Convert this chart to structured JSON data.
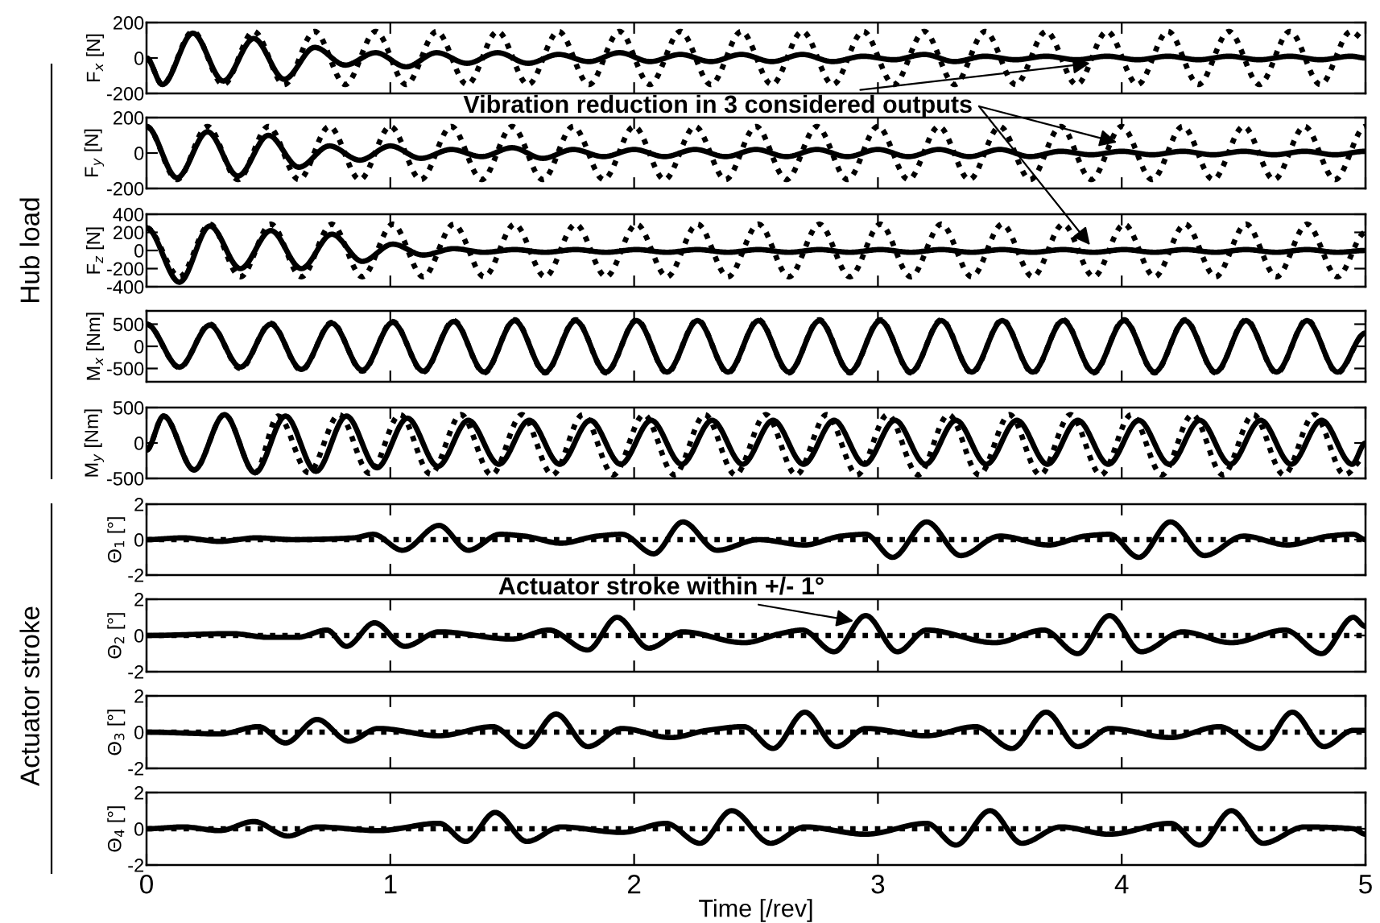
{
  "chart_data": [
    {
      "type": "line",
      "ylabel": "F$_{x}$ [N]",
      "xlim": [
        0,
        5
      ],
      "xticks": [
        0,
        1,
        2,
        3,
        4,
        5
      ],
      "ylim": [
        -200,
        200
      ],
      "yticks": [
        -200,
        0,
        200
      ],
      "tick_labels": "y",
      "x": [
        0,
        0.065,
        0.19,
        0.315,
        0.44,
        0.565,
        0.69,
        0.815,
        0.94,
        1.065,
        1.19,
        1.315,
        1.44,
        1.565,
        1.69,
        1.815,
        1.94,
        2.065,
        2.19,
        2.315,
        2.44,
        2.565,
        2.69,
        2.815,
        2.94,
        3.065,
        3.19,
        3.315,
        3.44,
        3.565,
        3.69,
        3.815,
        3.94,
        4.065,
        4.19,
        4.315,
        4.44,
        4.565,
        4.69,
        4.815,
        4.94,
        5
      ],
      "series": [
        {
          "color": "#000000",
          "line_style": "dotted",
          "values": [
            0,
            -150,
            150,
            -150,
            150,
            -150,
            150,
            -150,
            150,
            -150,
            150,
            -150,
            150,
            -150,
            150,
            -150,
            150,
            -150,
            150,
            -150,
            150,
            -150,
            150,
            -150,
            150,
            -150,
            150,
            -150,
            150,
            -150,
            150,
            -150,
            150,
            -150,
            150,
            -150,
            150,
            -150,
            150,
            -150,
            150,
            100
          ]
        },
        {
          "color": "#000000",
          "line_style": "solid",
          "values": [
            0,
            -150,
            140,
            -130,
            110,
            -120,
            60,
            -40,
            30,
            -50,
            30,
            -30,
            30,
            -30,
            20,
            -20,
            30,
            -20,
            20,
            -20,
            20,
            -20,
            20,
            -20,
            10,
            -10,
            20,
            -20,
            10,
            -10,
            10,
            -10,
            10,
            -10,
            10,
            -10,
            10,
            -10,
            10,
            -10,
            10,
            0
          ]
        }
      ],
      "annotations": [
        {
          "text": "Vibration reduction in 3 considered outputs",
          "x": 3.87,
          "y": -30
        }
      ]
    },
    {
      "type": "line",
      "ylabel": "F$_{y}$ [N]",
      "xlim": [
        0,
        5
      ],
      "xticks": [
        0,
        1,
        2,
        3,
        4,
        5
      ],
      "ylim": [
        -200,
        200
      ],
      "yticks": [
        -200,
        0,
        200
      ],
      "tick_labels": "y",
      "x": [
        0,
        0.125,
        0.25,
        0.375,
        0.5,
        0.625,
        0.75,
        0.875,
        1,
        1.125,
        1.25,
        1.375,
        1.5,
        1.625,
        1.75,
        1.875,
        2,
        2.125,
        2.25,
        2.375,
        2.5,
        2.625,
        2.75,
        2.875,
        3,
        3.125,
        3.25,
        3.375,
        3.5,
        3.625,
        3.75,
        3.875,
        4,
        4.125,
        4.25,
        4.375,
        4.5,
        4.625,
        4.75,
        4.875,
        5
      ],
      "series": [
        {
          "color": "#000000",
          "line_style": "dotted",
          "values": [
            150,
            -150,
            150,
            -150,
            150,
            -150,
            150,
            -150,
            150,
            -150,
            150,
            -150,
            150,
            -150,
            150,
            -150,
            150,
            -150,
            150,
            -150,
            150,
            -150,
            150,
            -150,
            150,
            -150,
            150,
            -150,
            150,
            -150,
            150,
            -150,
            150,
            -150,
            150,
            -150,
            150,
            -150,
            150,
            -150,
            150
          ]
        },
        {
          "color": "#000000",
          "line_style": "solid",
          "values": [
            150,
            -140,
            120,
            -130,
            100,
            -80,
            40,
            -40,
            40,
            -30,
            20,
            -20,
            30,
            -30,
            20,
            -20,
            20,
            -20,
            20,
            -20,
            20,
            -20,
            20,
            -20,
            20,
            -20,
            20,
            -20,
            20,
            -20,
            10,
            -10,
            10,
            -10,
            10,
            -10,
            10,
            -10,
            10,
            -10,
            10
          ]
        }
      ]
    },
    {
      "type": "line",
      "ylabel": "F$_{z}$ [N]",
      "xlim": [
        0,
        5
      ],
      "xticks": [
        0,
        1,
        2,
        3,
        4,
        5
      ],
      "ylim": [
        -400,
        400
      ],
      "yticks": [
        -400,
        -200,
        0,
        200,
        400
      ],
      "tick_labels": "y",
      "x": [
        0,
        0.135,
        0.26,
        0.385,
        0.51,
        0.635,
        0.76,
        0.885,
        1.01,
        1.135,
        1.26,
        1.385,
        1.51,
        1.635,
        1.76,
        1.885,
        2.01,
        2.135,
        2.26,
        2.385,
        2.51,
        2.635,
        2.76,
        2.885,
        3.01,
        3.135,
        3.26,
        3.385,
        3.51,
        3.635,
        3.76,
        3.885,
        4.01,
        4.135,
        4.26,
        4.385,
        4.51,
        4.635,
        4.76,
        4.885,
        5
      ],
      "series": [
        {
          "color": "#000000",
          "line_style": "dotted",
          "values": [
            250,
            -290,
            290,
            -290,
            290,
            -290,
            290,
            -290,
            290,
            -290,
            290,
            -290,
            290,
            -290,
            290,
            -290,
            290,
            -290,
            290,
            -290,
            290,
            -290,
            290,
            -290,
            290,
            -290,
            290,
            -290,
            290,
            -290,
            290,
            -290,
            290,
            -290,
            290,
            -290,
            290,
            -290,
            290,
            -290,
            200
          ]
        },
        {
          "color": "#000000",
          "line_style": "solid",
          "values": [
            250,
            -350,
            270,
            -200,
            220,
            -200,
            180,
            -120,
            70,
            -50,
            20,
            -20,
            10,
            -20,
            10,
            -20,
            10,
            -20,
            10,
            -20,
            10,
            -20,
            10,
            -20,
            10,
            -20,
            10,
            -20,
            10,
            -20,
            10,
            -20,
            10,
            -20,
            10,
            -20,
            10,
            -20,
            10,
            -20,
            0
          ]
        }
      ],
      "annotations": [
        "Hub load"
      ]
    },
    {
      "type": "line",
      "ylabel": "M$_{x}$ [Nm]",
      "xlim": [
        0,
        5
      ],
      "xticks": [
        0,
        1,
        2,
        3,
        4,
        5
      ],
      "ylim": [
        -800,
        800
      ],
      "yticks": [
        -500,
        0,
        500
      ],
      "tick_labels": "y",
      "x": [
        0,
        0.135,
        0.26,
        0.385,
        0.51,
        0.635,
        0.76,
        0.885,
        1.01,
        1.135,
        1.26,
        1.385,
        1.51,
        1.635,
        1.76,
        1.885,
        2.01,
        2.135,
        2.26,
        2.385,
        2.51,
        2.635,
        2.76,
        2.885,
        3.01,
        3.135,
        3.26,
        3.385,
        3.51,
        3.635,
        3.76,
        3.885,
        4.01,
        4.135,
        4.26,
        4.385,
        4.51,
        4.635,
        4.76,
        4.885,
        5
      ],
      "series": [
        {
          "color": "#000000",
          "line_style": "dotted",
          "values": [
            500,
            -480,
            500,
            -500,
            520,
            -540,
            540,
            -560,
            560,
            -580,
            580,
            -600,
            600,
            -600,
            600,
            -600,
            600,
            -600,
            600,
            -600,
            600,
            -600,
            600,
            -600,
            600,
            -600,
            600,
            -600,
            600,
            -600,
            600,
            -600,
            600,
            -600,
            600,
            -600,
            600,
            -600,
            600,
            -600,
            300
          ]
        },
        {
          "color": "#000000",
          "line_style": "solid",
          "values": [
            500,
            -470,
            480,
            -470,
            500,
            -520,
            520,
            -540,
            540,
            -560,
            560,
            -580,
            580,
            -580,
            580,
            -580,
            580,
            -580,
            580,
            -580,
            580,
            -580,
            580,
            -580,
            580,
            -580,
            580,
            -580,
            580,
            -580,
            580,
            -580,
            580,
            -580,
            580,
            -580,
            580,
            -580,
            580,
            -580,
            300
          ]
        }
      ]
    },
    {
      "type": "line",
      "ylabel": "M$_{y}$ [Nm]",
      "xlim": [
        0,
        5
      ],
      "xticks": [
        0,
        1,
        2,
        3,
        4,
        5
      ],
      "ylim": [
        -500,
        500
      ],
      "yticks": [
        -500,
        0,
        500
      ],
      "tick_labels": "y",
      "series": [
        {
          "color": "#000000",
          "line_style": "dotted",
          "x": [
            0,
            0.07,
            0.195,
            0.32,
            0.445,
            0.54,
            0.665,
            0.79,
            0.915,
            1.04,
            1.165,
            1.29,
            1.415,
            1.54,
            1.665,
            1.79,
            1.915,
            2.04,
            2.165,
            2.29,
            2.415,
            2.54,
            2.665,
            2.79,
            2.915,
            3.04,
            3.165,
            3.29,
            3.415,
            3.54,
            3.665,
            3.79,
            3.915,
            4.04,
            4.165,
            4.29,
            4.415,
            4.54,
            4.665,
            4.79,
            4.915,
            5
          ],
          "values": [
            -100,
            380,
            -380,
            400,
            -420,
            380,
            -420,
            400,
            -430,
            400,
            -440,
            400,
            -450,
            400,
            -450,
            400,
            -450,
            400,
            -450,
            400,
            -450,
            400,
            -450,
            400,
            -450,
            400,
            -450,
            400,
            -450,
            400,
            -450,
            400,
            -450,
            400,
            -450,
            400,
            -450,
            400,
            -450,
            400,
            -450,
            -200
          ]
        },
        {
          "color": "#000000",
          "line_style": "solid",
          "x": [
            0,
            0.07,
            0.195,
            0.32,
            0.445,
            0.57,
            0.695,
            0.82,
            0.945,
            1.07,
            1.195,
            1.32,
            1.445,
            1.57,
            1.695,
            1.82,
            1.945,
            2.07,
            2.195,
            2.32,
            2.445,
            2.57,
            2.695,
            2.82,
            2.945,
            3.07,
            3.195,
            3.32,
            3.445,
            3.57,
            3.695,
            3.82,
            3.945,
            4.07,
            4.195,
            4.32,
            4.445,
            4.57,
            4.695,
            4.82,
            4.945,
            5
          ],
          "values": [
            -100,
            380,
            -380,
            400,
            -420,
            380,
            -400,
            380,
            -350,
            350,
            -330,
            320,
            -300,
            320,
            -300,
            320,
            -300,
            320,
            -300,
            320,
            -300,
            320,
            -300,
            320,
            -300,
            320,
            -300,
            320,
            -300,
            320,
            -300,
            320,
            -300,
            320,
            -300,
            320,
            -300,
            320,
            -300,
            320,
            -300,
            0
          ]
        }
      ]
    },
    {
      "type": "line",
      "ylabel": "Θ$_{1}$ [°]",
      "xlim": [
        0,
        5
      ],
      "xticks": [
        0,
        1,
        2,
        3,
        4,
        5
      ],
      "ylim": [
        -2,
        2
      ],
      "yticks": [
        -2,
        0,
        2
      ],
      "tick_labels": "y",
      "series": [
        {
          "color": "#000000",
          "line_style": "dotted",
          "x": [
            0,
            5
          ],
          "values": [
            0,
            0
          ]
        },
        {
          "color": "#000000",
          "line_style": "solid",
          "x": [
            0,
            0.15,
            0.3,
            0.45,
            0.6,
            0.85,
            0.93,
            1.05,
            1.2,
            1.32,
            1.45,
            1.55,
            1.7,
            1.85,
            1.95,
            2.08,
            2.2,
            2.34,
            2.51,
            2.7,
            2.85,
            2.95,
            3.06,
            3.2,
            3.34,
            3.5,
            3.7,
            3.85,
            3.95,
            4.07,
            4.2,
            4.34,
            4.5,
            4.68,
            4.85,
            4.95,
            5
          ],
          "values": [
            0,
            0.1,
            -0.1,
            0.1,
            0,
            0.1,
            0.3,
            -0.6,
            0.8,
            -0.6,
            0.3,
            0.2,
            -0.2,
            0.2,
            0.3,
            -0.8,
            1.0,
            -0.6,
            0,
            -0.3,
            0.2,
            0.3,
            -1.0,
            1.0,
            -0.9,
            0.2,
            -0.3,
            0.2,
            0.3,
            -1.0,
            1.0,
            -0.9,
            0.2,
            -0.3,
            0.2,
            0.3,
            0
          ]
        }
      ]
    },
    {
      "type": "line",
      "ylabel": "Θ$_{2}$ [°]",
      "xlim": [
        0,
        5
      ],
      "xticks": [
        0,
        1,
        2,
        3,
        4,
        5
      ],
      "ylim": [
        -2,
        2
      ],
      "yticks": [
        -2,
        0,
        2
      ],
      "tick_labels": "y",
      "series": [
        {
          "color": "#000000",
          "line_style": "dotted",
          "x": [
            0,
            5
          ],
          "values": [
            0,
            0
          ]
        },
        {
          "color": "#000000",
          "line_style": "solid",
          "x": [
            0,
            0.35,
            0.5,
            0.62,
            0.74,
            0.82,
            0.935,
            1.06,
            1.2,
            1.5,
            1.65,
            1.81,
            1.93,
            2.06,
            2.2,
            2.45,
            2.6,
            2.69,
            2.82,
            2.95,
            3.08,
            3.2,
            3.48,
            3.68,
            3.82,
            3.95,
            4.08,
            4.25,
            4.45,
            4.67,
            4.82,
            4.95,
            5
          ],
          "values": [
            0,
            0.1,
            -0.1,
            -0.1,
            0.3,
            -0.6,
            0.7,
            -0.6,
            0.2,
            -0.2,
            0.3,
            -0.8,
            1.0,
            -0.7,
            0.2,
            -0.4,
            0.1,
            0.3,
            -0.9,
            1.1,
            -0.9,
            0.3,
            -0.4,
            0.3,
            -1.0,
            1.1,
            -0.9,
            0.2,
            -0.4,
            0.3,
            -1.0,
            1.0,
            0.5
          ]
        }
      ],
      "annotations": [
        {
          "text": "Actuator stroke within +/- 1°",
          "x": 2.9,
          "y": 0.8
        }
      ]
    },
    {
      "type": "line",
      "ylabel": "Θ$_{3}$ [°]",
      "xlim": [
        0,
        5
      ],
      "xticks": [
        0,
        1,
        2,
        3,
        4,
        5
      ],
      "ylim": [
        -2,
        2
      ],
      "yticks": [
        -2,
        0,
        2
      ],
      "tick_labels": "y",
      "series": [
        {
          "color": "#000000",
          "line_style": "dotted",
          "x": [
            0,
            5
          ],
          "values": [
            0,
            0
          ]
        },
        {
          "color": "#000000",
          "line_style": "solid",
          "x": [
            0,
            0.3,
            0.46,
            0.57,
            0.7,
            0.83,
            0.95,
            1.2,
            1.42,
            1.55,
            1.68,
            1.81,
            1.95,
            2.15,
            2.3,
            2.45,
            2.57,
            2.7,
            2.83,
            2.95,
            3.2,
            3.4,
            3.55,
            3.69,
            3.82,
            3.95,
            4.2,
            4.4,
            4.57,
            4.7,
            4.83,
            4.95,
            5
          ],
          "values": [
            0,
            -0.1,
            0.3,
            -0.6,
            0.7,
            -0.5,
            0.2,
            -0.2,
            0.3,
            -0.8,
            1.0,
            -0.8,
            0.2,
            -0.3,
            0.1,
            0.3,
            -0.9,
            1.1,
            -0.8,
            0.2,
            -0.2,
            0.3,
            -0.9,
            1.1,
            -0.8,
            0.2,
            -0.3,
            0.3,
            -0.9,
            1.1,
            -0.8,
            0.1,
            0.1
          ]
        }
      ],
      "annotations": [
        "Actuator stroke"
      ]
    },
    {
      "type": "line",
      "ylabel": "Θ$_{4}$ [°]",
      "xlabel": "Time [/rev]",
      "xlim": [
        0,
        5
      ],
      "xticks": [
        0,
        1,
        2,
        3,
        4,
        5
      ],
      "ylim": [
        -2,
        2
      ],
      "yticks": [
        -2,
        0,
        2
      ],
      "series": [
        {
          "color": "#000000",
          "line_style": "dotted",
          "x": [
            0,
            5
          ],
          "values": [
            0,
            0
          ]
        },
        {
          "color": "#000000",
          "line_style": "solid",
          "x": [
            0,
            0.15,
            0.3,
            0.44,
            0.58,
            0.7,
            0.95,
            1.2,
            1.31,
            1.43,
            1.56,
            1.7,
            1.95,
            2.13,
            2.27,
            2.4,
            2.56,
            2.7,
            2.95,
            3.2,
            3.32,
            3.46,
            3.59,
            3.75,
            3.95,
            4.2,
            4.32,
            4.45,
            4.58,
            4.75,
            4.95,
            5
          ],
          "values": [
            0,
            0.1,
            -0.1,
            0.4,
            -0.4,
            0.1,
            -0.1,
            0.3,
            -0.7,
            0.9,
            -0.7,
            0.1,
            -0.2,
            0.3,
            -0.8,
            1.0,
            -0.8,
            0.1,
            -0.3,
            0.3,
            -0.9,
            1.0,
            -0.8,
            0.1,
            -0.3,
            0.3,
            -0.9,
            1.0,
            -0.8,
            0.1,
            0,
            -0.3
          ]
        }
      ]
    }
  ]
}
